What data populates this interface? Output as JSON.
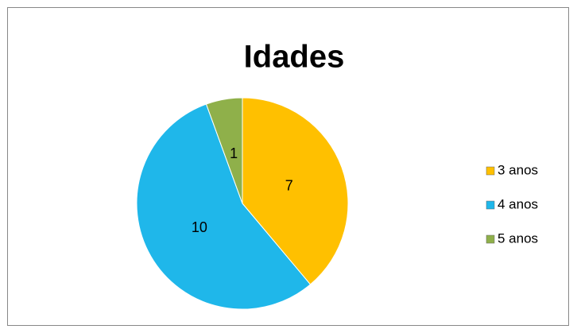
{
  "chart_data": {
    "type": "pie",
    "title": "Idades",
    "categories": [
      "3 anos",
      "4 anos",
      "5 anos"
    ],
    "values": [
      7,
      10,
      1
    ],
    "colors": [
      "#ffc000",
      "#1fb7ea",
      "#8fb04a"
    ],
    "legend": "right"
  }
}
